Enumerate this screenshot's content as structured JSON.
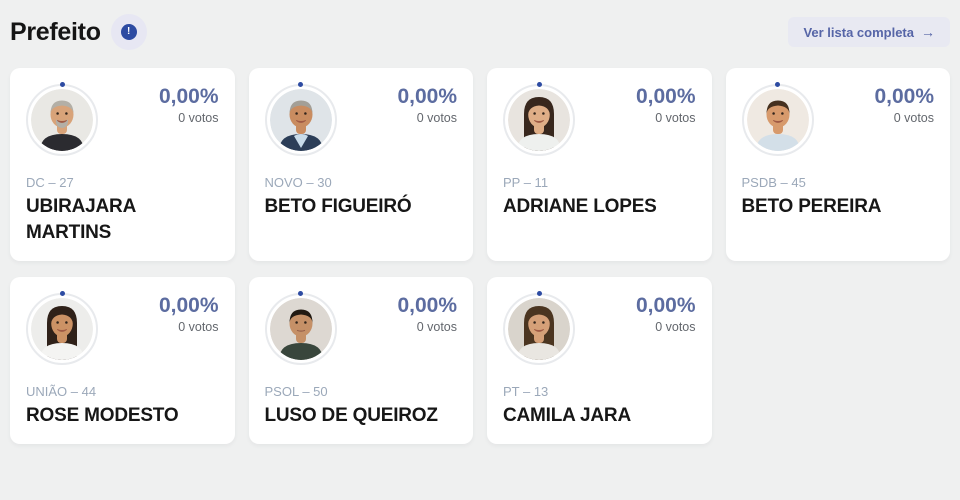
{
  "header": {
    "title": "Prefeito",
    "info_glyph": "!",
    "button_label": "Ver lista completa",
    "button_arrow": "→"
  },
  "colors": {
    "page_background": "#eff0f0",
    "card_background": "#ffffff",
    "percent_text": "#5c6ca0",
    "votes_text": "#63676d",
    "party_text": "#9ba8b9",
    "name_text": "#171717",
    "accent_blue": "#2d4ba2",
    "button_background": "#e8e9f2",
    "button_text": "#5665a7",
    "avatar_ring": "#e8eaed"
  },
  "candidates": [
    {
      "party": "DC – 27",
      "name": "UBIRAJARA MARTINS",
      "percent": "0,00%",
      "votes": "0 votos",
      "avatar": {
        "bg": "#e9e8e4",
        "hair": "#b3afa6",
        "skin": "#d8a379",
        "shirt": "#2b2b30",
        "style": "short",
        "beard": true,
        "smile": true
      }
    },
    {
      "party": "NOVO – 30",
      "name": "BETO FIGUEIRÓ",
      "percent": "0,00%",
      "votes": "0 votos",
      "avatar": {
        "bg": "#dfe4e8",
        "hair": "#a39f97",
        "skin": "#c98c60",
        "shirt": "#2c3e58",
        "collar": "#c9dcEA",
        "style": "short",
        "smile": true
      }
    },
    {
      "party": "PP – 11",
      "name": "ADRIANE LOPES",
      "percent": "0,00%",
      "votes": "0 votos",
      "avatar": {
        "bg": "#e8e4df",
        "hair": "#38271d",
        "skin": "#dfae87",
        "shirt": "#eef0ee",
        "style": "long",
        "smile": true
      }
    },
    {
      "party": "PSDB – 45",
      "name": "BETO PEREIRA",
      "percent": "0,00%",
      "votes": "0 votos",
      "avatar": {
        "bg": "#efe9e2",
        "hair": "#45301f",
        "skin": "#d79a6c",
        "shirt": "#d3dfe8",
        "style": "short",
        "smile": true
      }
    },
    {
      "party": "UNIÃO – 44",
      "name": "ROSE MODESTO",
      "percent": "0,00%",
      "votes": "0 votos",
      "avatar": {
        "bg": "#ededeb",
        "hair": "#2f2119",
        "skin": "#cc9265",
        "shirt": "#f4f4f2",
        "style": "long",
        "smile": true
      }
    },
    {
      "party": "PSOL – 50",
      "name": "LUSO DE QUEIROZ",
      "percent": "0,00%",
      "votes": "0 votos",
      "avatar": {
        "bg": "#ddd8d2",
        "hair": "#221a12",
        "skin": "#c59067",
        "shirt": "#39463c",
        "style": "short",
        "smile": false
      }
    },
    {
      "party": "PT – 13",
      "name": "CAMILA JARA",
      "percent": "0,00%",
      "votes": "0 votos",
      "avatar": {
        "bg": "#d9d4cc",
        "hair": "#4b3520",
        "skin": "#d5a078",
        "shirt": "#e9e6e1",
        "style": "long",
        "smile": true
      }
    }
  ]
}
